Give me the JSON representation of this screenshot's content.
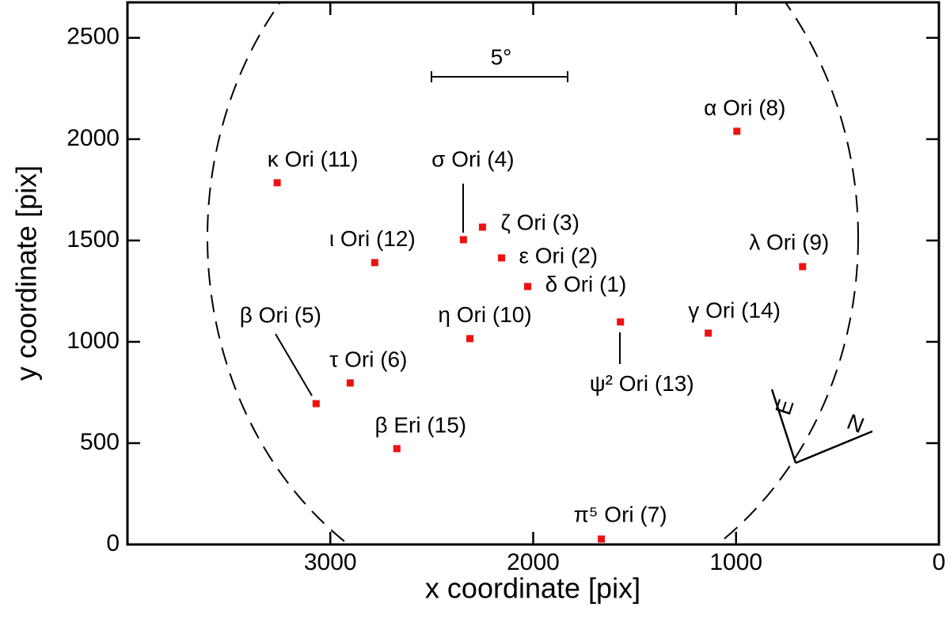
{
  "chart_data": {
    "type": "scatter",
    "xlabel": "x coordinate [pix]",
    "ylabel": "y coordinate [pix]",
    "xlim": [
      4000,
      0
    ],
    "ylim": [
      0,
      2675
    ],
    "xticks": [
      3000,
      2000,
      1000,
      0
    ],
    "yticks": [
      0,
      500,
      1000,
      1500,
      2000,
      2500
    ],
    "color": "#ee1111",
    "labels": [
      "κ Ori (11)",
      "σ Ori (4)",
      "ζ Ori (3)",
      "ι Ori (12)",
      "ε Ori (2)",
      "δ Ori (1)",
      "α Ori (8)",
      "λ Ori (9)",
      "γ Ori (14)",
      "ψ² Ori (13)",
      "η Ori (10)",
      "τ Ori (6)",
      "β Ori (5)",
      "β Eri (15)",
      "π⁵ Ori (7)"
    ],
    "x": [
      3262,
      2344,
      2250,
      2781,
      2156,
      2027,
      996,
      672,
      1137,
      1570,
      2312,
      2902,
      3070,
      2672,
      1664
    ],
    "values": [
      1785,
      1504,
      1566,
      1391,
      1414,
      1273,
      2039,
      1371,
      1043,
      1098,
      1016,
      797,
      695,
      473,
      27
    ],
    "scale_bar_label": "5°",
    "compass": [
      "E",
      "N"
    ]
  }
}
